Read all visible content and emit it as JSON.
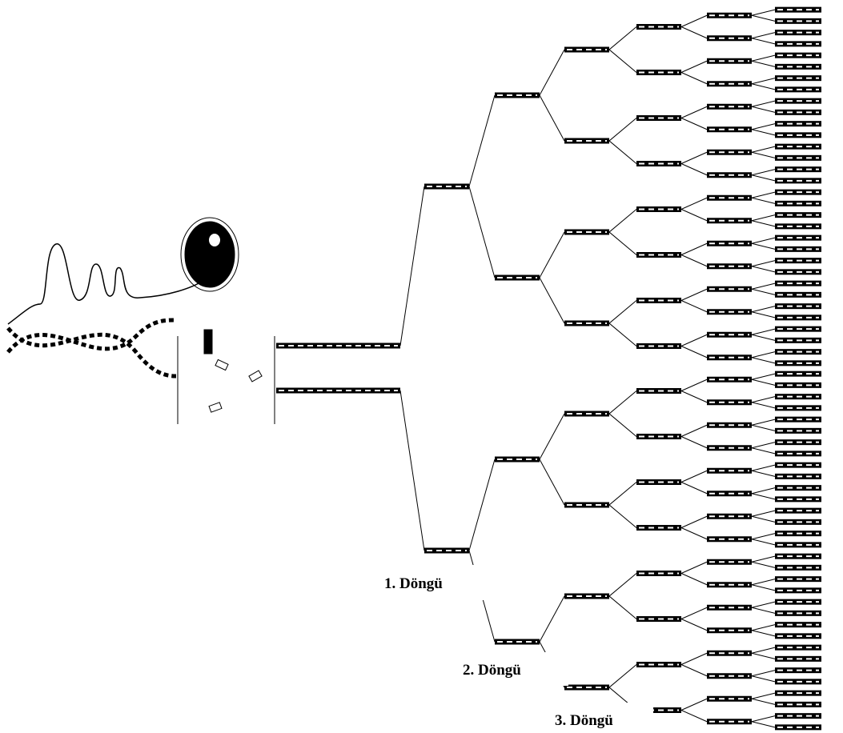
{
  "labels": [
    "1. Döngü",
    "2. Döngü",
    "3. Döngü"
  ]
}
